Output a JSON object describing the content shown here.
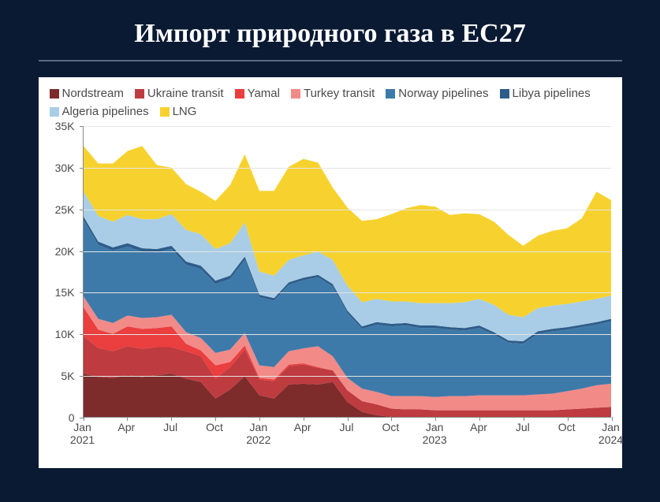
{
  "title": "Импорт природного газа в ЕС27",
  "background_color": "#0a1a33",
  "chart": {
    "type": "area",
    "background_color": "#ffffff",
    "grid_color": "#e4e4e4",
    "axis_color": "#888888",
    "label_color": "#4a4a4a",
    "title_fontsize": 34,
    "label_fontsize": 14,
    "legend_fontsize": 15,
    "ylim": [
      0,
      35000
    ],
    "ytick_step": 5000,
    "ytick_labels": [
      "0",
      "5K",
      "10K",
      "15K",
      "20K",
      "25K",
      "30K",
      "35K"
    ],
    "x_count": 37,
    "xticks": [
      {
        "i": 0,
        "l1": "Jan",
        "l2": "2021"
      },
      {
        "i": 3,
        "l1": "Apr",
        "l2": ""
      },
      {
        "i": 6,
        "l1": "Jul",
        "l2": ""
      },
      {
        "i": 9,
        "l1": "Oct",
        "l2": ""
      },
      {
        "i": 12,
        "l1": "Jan",
        "l2": "2022"
      },
      {
        "i": 15,
        "l1": "Apr",
        "l2": ""
      },
      {
        "i": 18,
        "l1": "Jul",
        "l2": ""
      },
      {
        "i": 21,
        "l1": "Oct",
        "l2": ""
      },
      {
        "i": 24,
        "l1": "Jan",
        "l2": "2023"
      },
      {
        "i": 27,
        "l1": "Apr",
        "l2": ""
      },
      {
        "i": 30,
        "l1": "Jul",
        "l2": ""
      },
      {
        "i": 33,
        "l1": "Oct",
        "l2": ""
      },
      {
        "i": 36,
        "l1": "Jan",
        "l2": "2024"
      }
    ],
    "series": [
      {
        "key": "nordstream",
        "label": "Nordstream",
        "color": "#7e2b2b"
      },
      {
        "key": "ukraine_transit",
        "label": "Ukraine transit",
        "color": "#be3b3f"
      },
      {
        "key": "yamal",
        "label": "Yamal",
        "color": "#ea3e3f"
      },
      {
        "key": "turkey_transit",
        "label": "Turkey transit",
        "color": "#f28a88"
      },
      {
        "key": "norway_pipelines",
        "label": "Norway pipelines",
        "color": "#3e7aa9"
      },
      {
        "key": "libya_pipelines",
        "label": "Libya pipelines",
        "color": "#2f5d8a"
      },
      {
        "key": "algeria_pipelines",
        "label": "Algeria pipelines",
        "color": "#a9cde6"
      },
      {
        "key": "lng",
        "label": "LNG",
        "color": "#f7d22e"
      }
    ],
    "data": {
      "nordstream": [
        5200,
        4800,
        4700,
        5000,
        4800,
        5000,
        5200,
        4600,
        4200,
        2200,
        3300,
        4900,
        2600,
        2200,
        3900,
        4000,
        3900,
        4200,
        1800,
        600,
        200,
        0,
        0,
        0,
        0,
        0,
        0,
        0,
        0,
        0,
        0,
        0,
        0,
        0,
        0,
        0,
        0
      ],
      "ukraine_transit": [
        4500,
        3500,
        3200,
        3500,
        3400,
        3400,
        3200,
        3300,
        3100,
        2400,
        2700,
        3200,
        1900,
        2100,
        2200,
        2300,
        2000,
        1400,
        1400,
        1300,
        1300,
        1000,
        900,
        900,
        800,
        800,
        800,
        800,
        800,
        800,
        800,
        800,
        800,
        900,
        1000,
        1100,
        1200
      ],
      "yamal": [
        3500,
        2200,
        2100,
        2400,
        2400,
        2300,
        2500,
        900,
        700,
        1600,
        600,
        500,
        200,
        200,
        200,
        150,
        100,
        0,
        0,
        0,
        0,
        0,
        0,
        0,
        0,
        0,
        0,
        0,
        0,
        0,
        0,
        0,
        0,
        0,
        0,
        0,
        0
      ],
      "turkey_transit": [
        1300,
        1300,
        1300,
        1300,
        1300,
        1300,
        1400,
        1400,
        1500,
        1500,
        1500,
        1500,
        1500,
        1500,
        1600,
        1800,
        2500,
        1700,
        1500,
        1500,
        1500,
        1500,
        1600,
        1600,
        1600,
        1700,
        1700,
        1800,
        1800,
        1800,
        1800,
        1900,
        2000,
        2200,
        2400,
        2700,
        2800
      ],
      "norway_pipelines": [
        9200,
        8900,
        8700,
        8300,
        8000,
        7800,
        7900,
        8100,
        8300,
        8300,
        8500,
        8800,
        8200,
        8000,
        8000,
        8200,
        8300,
        8400,
        7800,
        7200,
        8100,
        8400,
        8500,
        8200,
        8300,
        8000,
        7900,
        8100,
        7300,
        6300,
        6200,
        7300,
        7500,
        7400,
        7400,
        7300,
        7500
      ],
      "libya_pipelines": [
        400,
        400,
        400,
        400,
        400,
        400,
        400,
        400,
        400,
        400,
        400,
        400,
        300,
        300,
        300,
        300,
        300,
        300,
        300,
        300,
        300,
        300,
        300,
        300,
        300,
        300,
        300,
        300,
        300,
        300,
        300,
        300,
        300,
        300,
        300,
        300,
        300
      ],
      "algeria_pipelines": [
        3000,
        3100,
        3100,
        3400,
        3500,
        3600,
        3800,
        3800,
        3800,
        3800,
        3900,
        4100,
        2800,
        2700,
        2700,
        2700,
        2800,
        2900,
        3000,
        2900,
        2800,
        2700,
        2600,
        2700,
        2700,
        2900,
        3100,
        3200,
        3300,
        3100,
        2900,
        2800,
        2800,
        2800,
        2800,
        2800,
        2800
      ],
      "lng": [
        5500,
        6300,
        7000,
        7700,
        8800,
        6500,
        5600,
        5500,
        5100,
        5800,
        7000,
        8200,
        9700,
        10200,
        11200,
        11600,
        10700,
        8700,
        9400,
        9800,
        9600,
        10500,
        11200,
        11800,
        11600,
        10600,
        10700,
        10200,
        10000,
        9600,
        8600,
        8700,
        9000,
        9100,
        10000,
        12900,
        11500
      ]
    }
  }
}
